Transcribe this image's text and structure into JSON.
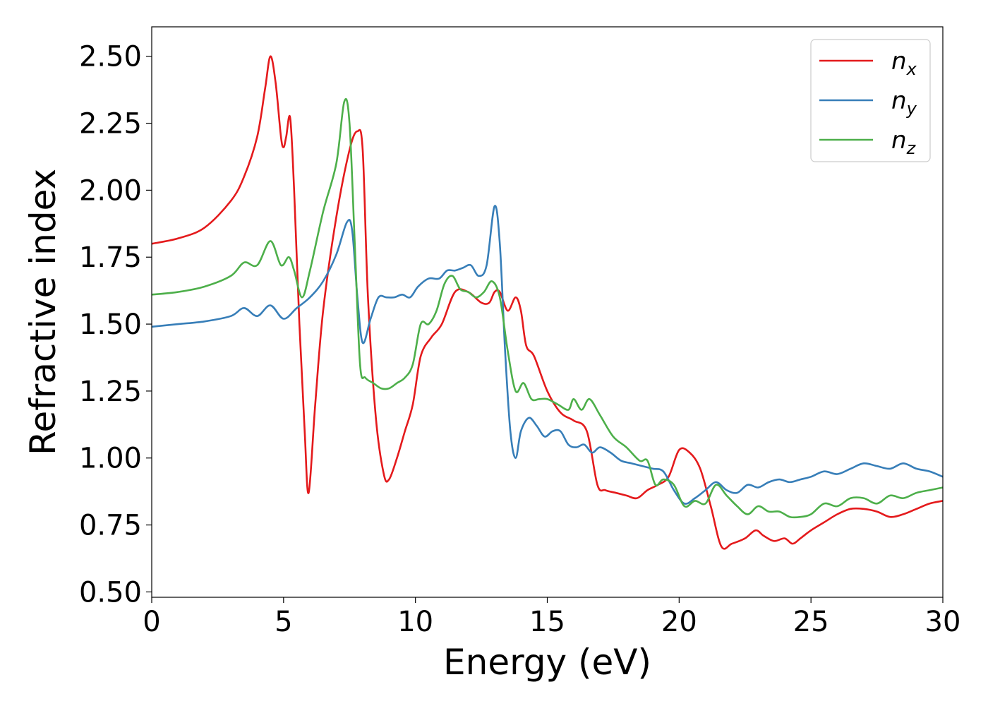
{
  "chart_data": {
    "type": "line",
    "xlabel": "Energy (eV)",
    "ylabel": "Refractive index",
    "xlim": [
      0,
      30
    ],
    "ylim": [
      0.48,
      2.61
    ],
    "xticks": [
      0,
      5,
      10,
      15,
      20,
      25,
      30
    ],
    "xtick_labels": [
      "0",
      "5",
      "10",
      "15",
      "20",
      "25",
      "30"
    ],
    "yticks": [
      0.5,
      0.75,
      1.0,
      1.25,
      1.5,
      1.75,
      2.0,
      2.25,
      2.5
    ],
    "ytick_labels": [
      "0.50",
      "0.75",
      "1.00",
      "1.25",
      "1.50",
      "1.75",
      "2.00",
      "2.25",
      "2.50"
    ],
    "grid": false,
    "legend_position": "top-right",
    "series": [
      {
        "name": "n_x",
        "legend_base": "n",
        "legend_sub": "x",
        "color": "#e41a1c",
        "x": [
          0,
          1,
          2,
          3,
          3.5,
          4,
          4.3,
          4.5,
          4.7,
          4.9,
          5.0,
          5.1,
          5.25,
          5.4,
          5.6,
          5.8,
          5.95,
          6.2,
          6.5,
          7.0,
          7.5,
          7.8,
          8.0,
          8.2,
          8.5,
          8.8,
          9.0,
          9.3,
          9.6,
          9.9,
          10.2,
          10.6,
          11.0,
          11.5,
          12.0,
          12.5,
          12.8,
          13.0,
          13.2,
          13.5,
          13.8,
          14.0,
          14.2,
          14.5,
          15.0,
          15.5,
          16.0,
          16.5,
          16.9,
          17.2,
          17.6,
          18.0,
          18.4,
          18.8,
          19.2,
          19.6,
          20.0,
          20.4,
          20.8,
          21.2,
          21.6,
          22.0,
          22.5,
          22.9,
          23.2,
          23.6,
          24.0,
          24.3,
          24.6,
          25.0,
          25.5,
          26.0,
          26.5,
          27.0,
          27.5,
          28.0,
          28.5,
          29.0,
          29.5,
          30.0
        ],
        "values": [
          1.8,
          1.82,
          1.86,
          1.96,
          2.05,
          2.2,
          2.38,
          2.5,
          2.4,
          2.2,
          2.16,
          2.2,
          2.27,
          2.0,
          1.5,
          1.1,
          0.87,
          1.2,
          1.55,
          1.9,
          2.15,
          2.22,
          2.15,
          1.6,
          1.15,
          0.94,
          0.92,
          1.0,
          1.1,
          1.2,
          1.38,
          1.45,
          1.5,
          1.62,
          1.62,
          1.58,
          1.58,
          1.62,
          1.62,
          1.55,
          1.6,
          1.55,
          1.42,
          1.38,
          1.25,
          1.17,
          1.14,
          1.1,
          0.9,
          0.88,
          0.87,
          0.86,
          0.85,
          0.88,
          0.9,
          0.93,
          1.03,
          1.02,
          0.96,
          0.82,
          0.67,
          0.68,
          0.7,
          0.73,
          0.71,
          0.69,
          0.7,
          0.68,
          0.7,
          0.73,
          0.76,
          0.79,
          0.81,
          0.81,
          0.8,
          0.78,
          0.79,
          0.81,
          0.83,
          0.84
        ]
      },
      {
        "name": "n_y",
        "legend_base": "n",
        "legend_sub": "y",
        "color": "#377eb8",
        "x": [
          0,
          1,
          2,
          3,
          3.5,
          4,
          4.5,
          5.0,
          5.5,
          6.0,
          6.5,
          7.0,
          7.4,
          7.6,
          7.8,
          8.0,
          8.3,
          8.6,
          8.9,
          9.2,
          9.5,
          9.8,
          10.1,
          10.5,
          10.9,
          11.2,
          11.5,
          11.8,
          12.1,
          12.4,
          12.7,
          13.0,
          13.2,
          13.4,
          13.6,
          13.8,
          14.0,
          14.3,
          14.6,
          14.9,
          15.2,
          15.5,
          15.8,
          16.1,
          16.4,
          16.7,
          17.0,
          17.4,
          17.8,
          18.2,
          18.6,
          19.0,
          19.4,
          19.8,
          20.2,
          20.6,
          21.0,
          21.4,
          21.8,
          22.2,
          22.6,
          23.0,
          23.4,
          23.8,
          24.2,
          24.6,
          25.0,
          25.5,
          26.0,
          26.5,
          27.0,
          27.5,
          28.0,
          28.5,
          29.0,
          29.5,
          30.0
        ],
        "values": [
          1.49,
          1.5,
          1.51,
          1.53,
          1.56,
          1.53,
          1.57,
          1.52,
          1.56,
          1.6,
          1.66,
          1.76,
          1.88,
          1.85,
          1.6,
          1.43,
          1.52,
          1.6,
          1.6,
          1.6,
          1.61,
          1.6,
          1.64,
          1.67,
          1.67,
          1.7,
          1.7,
          1.71,
          1.72,
          1.68,
          1.72,
          1.94,
          1.8,
          1.4,
          1.1,
          1.0,
          1.1,
          1.15,
          1.12,
          1.08,
          1.1,
          1.1,
          1.05,
          1.04,
          1.05,
          1.02,
          1.04,
          1.02,
          0.99,
          0.98,
          0.97,
          0.96,
          0.95,
          0.88,
          0.83,
          0.85,
          0.88,
          0.91,
          0.88,
          0.87,
          0.9,
          0.89,
          0.91,
          0.92,
          0.91,
          0.92,
          0.93,
          0.95,
          0.94,
          0.96,
          0.98,
          0.97,
          0.96,
          0.98,
          0.96,
          0.95,
          0.93
        ]
      },
      {
        "name": "n_z",
        "legend_base": "n",
        "legend_sub": "z",
        "color": "#4daf4a",
        "x": [
          0,
          1,
          2,
          3,
          3.5,
          4,
          4.5,
          4.9,
          5.2,
          5.4,
          5.7,
          6.0,
          6.5,
          7.0,
          7.3,
          7.5,
          7.7,
          7.9,
          8.1,
          8.4,
          8.7,
          9.0,
          9.3,
          9.6,
          9.9,
          10.2,
          10.5,
          10.8,
          11.1,
          11.4,
          11.7,
          12.0,
          12.3,
          12.6,
          12.9,
          13.2,
          13.5,
          13.8,
          14.1,
          14.4,
          14.7,
          15.0,
          15.4,
          15.8,
          16.0,
          16.3,
          16.6,
          17.0,
          17.5,
          18.0,
          18.5,
          18.8,
          19.1,
          19.4,
          19.8,
          20.2,
          20.6,
          21.0,
          21.4,
          21.8,
          22.2,
          22.6,
          23.0,
          23.4,
          23.8,
          24.2,
          24.6,
          25.0,
          25.5,
          26.0,
          26.5,
          27.0,
          27.5,
          28.0,
          28.5,
          29.0,
          29.5,
          30.0
        ],
        "values": [
          1.61,
          1.62,
          1.64,
          1.68,
          1.73,
          1.72,
          1.81,
          1.72,
          1.75,
          1.7,
          1.6,
          1.7,
          1.92,
          2.1,
          2.33,
          2.25,
          1.8,
          1.35,
          1.3,
          1.28,
          1.26,
          1.26,
          1.28,
          1.3,
          1.35,
          1.5,
          1.5,
          1.55,
          1.65,
          1.68,
          1.63,
          1.62,
          1.6,
          1.62,
          1.66,
          1.6,
          1.4,
          1.25,
          1.28,
          1.22,
          1.22,
          1.22,
          1.2,
          1.18,
          1.22,
          1.18,
          1.22,
          1.16,
          1.08,
          1.04,
          0.99,
          0.99,
          0.9,
          0.92,
          0.9,
          0.82,
          0.84,
          0.83,
          0.9,
          0.86,
          0.82,
          0.79,
          0.82,
          0.8,
          0.8,
          0.78,
          0.78,
          0.79,
          0.83,
          0.82,
          0.85,
          0.85,
          0.83,
          0.86,
          0.85,
          0.87,
          0.88,
          0.89
        ]
      }
    ]
  }
}
